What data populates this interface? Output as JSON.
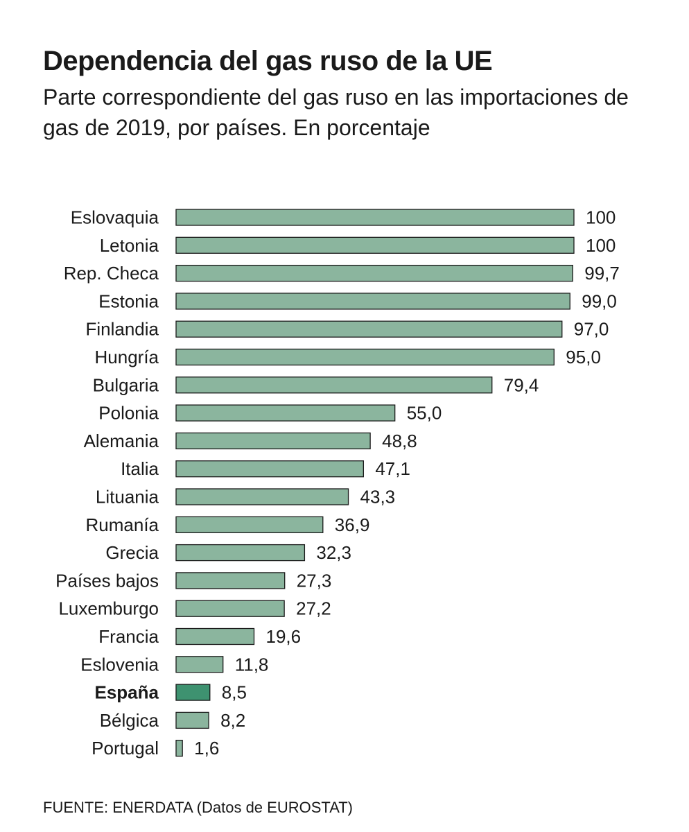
{
  "header": {
    "title": "Dependencia del gas ruso de la UE",
    "subtitle": "Parte correspondiente del gas ruso en las importaciones de gas de 2019, por países. En porcentaje"
  },
  "source": "FUENTE: ENERDATA (Datos de EUROSTAT)",
  "colors": {
    "bar": "#8bb59e",
    "highlight_bar": "#3e9270",
    "bar_border": "#1a1a1a",
    "text": "#1a1a1a"
  },
  "chart_data": {
    "type": "bar",
    "orientation": "horizontal",
    "title": "Dependencia del gas ruso de la UE",
    "subtitle": "Parte correspondiente del gas ruso en las importaciones de gas de 2019, por países. En porcentaje",
    "xlim": [
      0,
      100
    ],
    "grid": false,
    "legend": "none",
    "highlight": "España",
    "categories": [
      "Eslovaquia",
      "Letonia",
      "Rep. Checa",
      "Estonia",
      "Finlandia",
      "Hungría",
      "Bulgaria",
      "Polonia",
      "Alemania",
      "Italia",
      "Lituania",
      "Rumanía",
      "Grecia",
      "Países bajos",
      "Luxemburgo",
      "Francia",
      "Eslovenia",
      "España",
      "Bélgica",
      "Portugal"
    ],
    "values": [
      100,
      100,
      99.7,
      99.0,
      97.0,
      95.0,
      79.4,
      55.0,
      48.8,
      47.1,
      43.3,
      36.9,
      32.3,
      27.3,
      27.2,
      19.6,
      11.8,
      8.5,
      8.2,
      1.6
    ],
    "value_labels": [
      "100",
      "100",
      "99,7",
      "99,0",
      "97,0",
      "95,0",
      "79,4",
      "55,0",
      "48,8",
      "47,1",
      "43,3",
      "36,9",
      "32,3",
      "27,3",
      "27,2",
      "19,6",
      "11,8",
      "8,5",
      "8,2",
      "1,6"
    ]
  }
}
